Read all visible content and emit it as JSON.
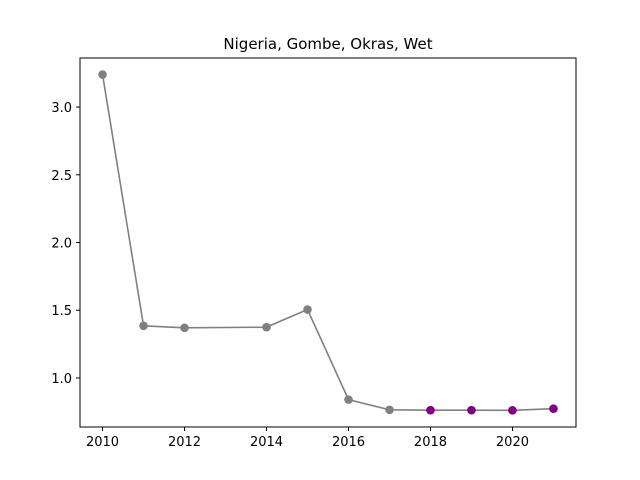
{
  "chart_data": {
    "type": "line",
    "title": "Nigeria, Gombe, Okras, Wet",
    "xlabel": "",
    "ylabel": "",
    "x": [
      2010,
      2011,
      2012,
      2014,
      2015,
      2016,
      2017,
      2018,
      2019,
      2020,
      2021
    ],
    "series": [
      {
        "values": [
          3.24,
          1.385,
          1.37,
          1.375,
          1.505,
          0.84,
          0.765,
          0.762,
          0.762,
          0.761,
          0.773
        ],
        "line_color": "#808080",
        "point_colors": [
          "#808080",
          "#808080",
          "#808080",
          "#808080",
          "#808080",
          "#808080",
          "#808080",
          "#800080",
          "#800080",
          "#800080",
          "#800080"
        ]
      }
    ],
    "xlim": [
      2009.45,
      2021.55
    ],
    "ylim": [
      0.638,
      3.362
    ],
    "xticks": [
      "2010",
      "2012",
      "2014",
      "2016",
      "2018",
      "2020"
    ],
    "yticks": [
      "1.0",
      "1.5",
      "2.0",
      "2.5",
      "3.0"
    ],
    "grid": false
  }
}
